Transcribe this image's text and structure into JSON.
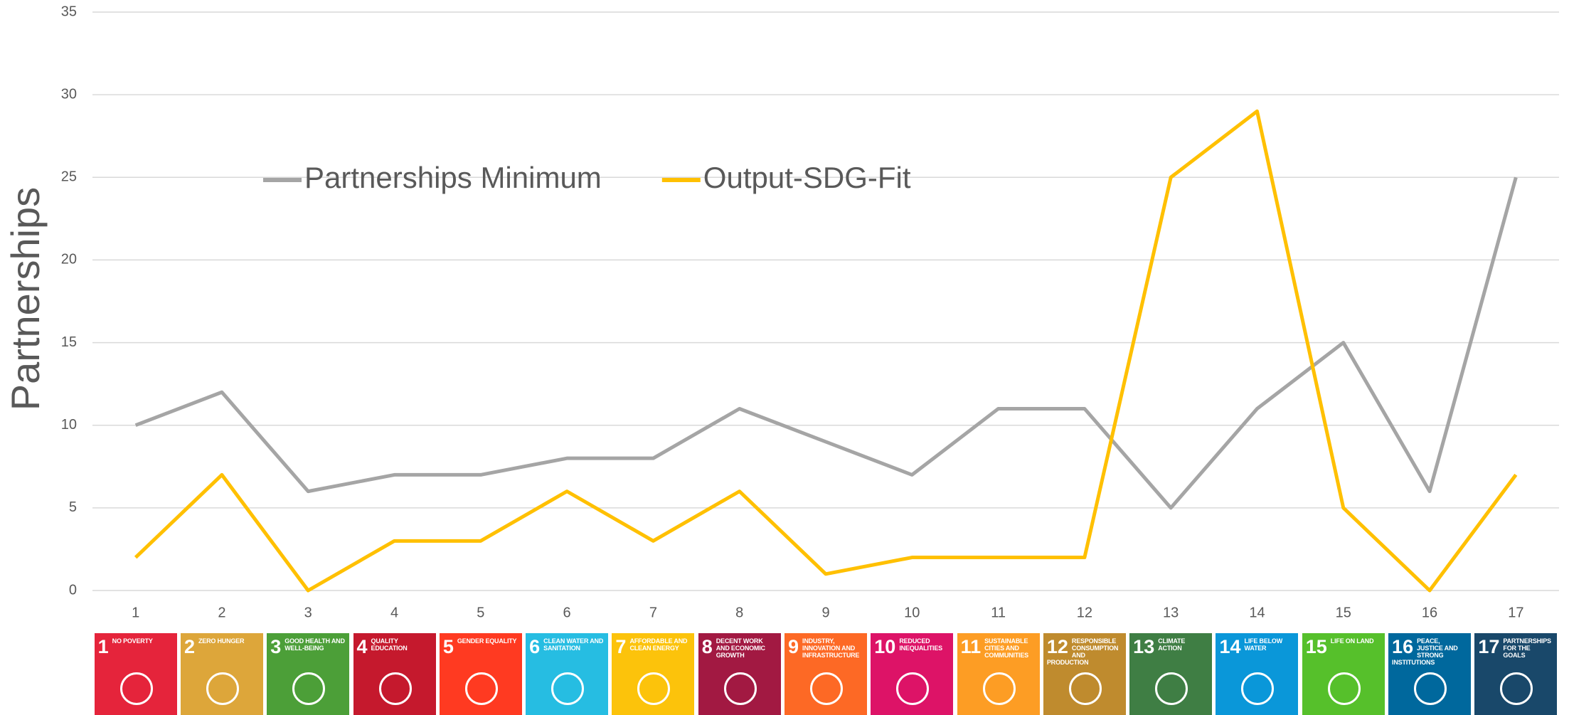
{
  "chart_data": {
    "type": "line",
    "ylabel": "Partnerships",
    "categories": [
      "1",
      "2",
      "3",
      "4",
      "5",
      "6",
      "7",
      "8",
      "9",
      "10",
      "11",
      "12",
      "13",
      "14",
      "15",
      "16",
      "17"
    ],
    "series": [
      {
        "name": "Partnerships Minimum",
        "color": "#a5a5a5",
        "values": [
          10,
          12,
          6,
          7,
          7,
          8,
          8,
          11,
          9,
          7,
          11,
          11,
          5,
          11,
          15,
          6,
          25
        ]
      },
      {
        "name": "Output-SDG-Fit",
        "color": "#ffc000",
        "values": [
          2,
          7,
          0,
          3,
          3,
          6,
          3,
          6,
          1,
          2,
          2,
          2,
          25,
          29,
          5,
          0,
          7
        ]
      }
    ],
    "ylim": [
      0,
      35
    ],
    "yticks": [
      0,
      5,
      10,
      15,
      20,
      25,
      30,
      35
    ],
    "grid": true,
    "legend": "upper left"
  },
  "sdg_tiles": [
    {
      "number": "1",
      "label": "NO POVERTY",
      "color": "#e5243b"
    },
    {
      "number": "2",
      "label": "ZERO HUNGER",
      "color": "#dda63a"
    },
    {
      "number": "3",
      "label": "GOOD HEALTH AND WELL-BEING",
      "color": "#4c9f38"
    },
    {
      "number": "4",
      "label": "QUALITY EDUCATION",
      "color": "#c5192d"
    },
    {
      "number": "5",
      "label": "GENDER EQUALITY",
      "color": "#ff3a21"
    },
    {
      "number": "6",
      "label": "CLEAN WATER AND SANITATION",
      "color": "#26bde2"
    },
    {
      "number": "7",
      "label": "AFFORDABLE AND CLEAN ENERGY",
      "color": "#fcc30b"
    },
    {
      "number": "8",
      "label": "DECENT WORK AND ECONOMIC GROWTH",
      "color": "#a21942"
    },
    {
      "number": "9",
      "label": "INDUSTRY, INNOVATION AND INFRASTRUCTURE",
      "color": "#fd6925"
    },
    {
      "number": "10",
      "label": "REDUCED INEQUALITIES",
      "color": "#dd1367"
    },
    {
      "number": "11",
      "label": "SUSTAINABLE CITIES AND COMMUNITIES",
      "color": "#fd9d24"
    },
    {
      "number": "12",
      "label": "RESPONSIBLE CONSUMPTION AND PRODUCTION",
      "color": "#bf8b2e"
    },
    {
      "number": "13",
      "label": "CLIMATE ACTION",
      "color": "#3f7e44"
    },
    {
      "number": "14",
      "label": "LIFE BELOW WATER",
      "color": "#0a97d9"
    },
    {
      "number": "15",
      "label": "LIFE ON LAND",
      "color": "#56c02b"
    },
    {
      "number": "16",
      "label": "PEACE, JUSTICE AND STRONG INSTITUTIONS",
      "color": "#00689d"
    },
    {
      "number": "17",
      "label": "PARTNERSHIPS FOR THE GOALS",
      "color": "#19486a"
    }
  ]
}
